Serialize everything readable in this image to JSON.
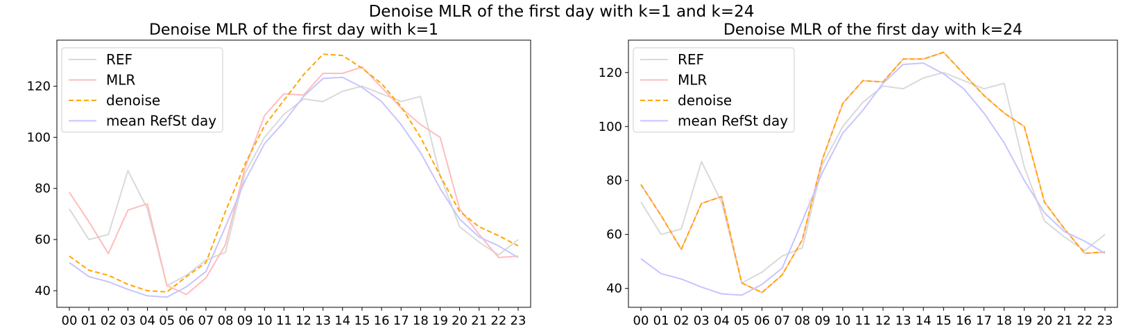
{
  "suptitle": "Denoise MLR of the first day with k=1 and k=24",
  "chart_data": [
    {
      "type": "line",
      "title": "Denoise MLR of the first day with k=1",
      "xlabel": "",
      "ylabel": "",
      "categories": [
        "00",
        "01",
        "02",
        "03",
        "04",
        "05",
        "06",
        "07",
        "08",
        "09",
        "10",
        "11",
        "12",
        "13",
        "14",
        "15",
        "16",
        "17",
        "18",
        "19",
        "20",
        "21",
        "22",
        "23"
      ],
      "ylim": [
        33.5,
        138
      ],
      "yticks": [
        40,
        60,
        80,
        100,
        120
      ],
      "grid": false,
      "legend": "top-left",
      "series": [
        {
          "name": "REF",
          "color": "#d9d9d9",
          "style": "solid",
          "values": [
            72,
            60,
            62,
            87,
            72,
            42,
            46,
            52,
            55,
            86,
            100,
            109,
            115,
            114,
            118,
            120,
            117,
            114,
            116,
            85,
            65,
            59,
            54,
            60
          ]
        },
        {
          "name": "MLR",
          "color": "#ffbcbc",
          "style": "solid",
          "values": [
            78.5,
            67,
            54.5,
            71.5,
            74,
            42,
            38.5,
            45,
            58,
            88,
            108.5,
            117,
            116.5,
            125,
            125,
            127.5,
            119.5,
            111.5,
            105,
            100,
            72,
            62,
            53,
            53.5
          ]
        },
        {
          "name": "denoise",
          "color": "#ffa500",
          "style": "dashed",
          "values": [
            53.5,
            48,
            46,
            42.5,
            40,
            39.5,
            45.5,
            51,
            71,
            89.5,
            104.5,
            114.5,
            124.5,
            132.5,
            132,
            127,
            121,
            112,
            100,
            85,
            71,
            65,
            61.5,
            57.5
          ]
        },
        {
          "name": "mean RefSt day",
          "color": "#c5c5ff",
          "style": "solid",
          "values": [
            51,
            45.5,
            43.5,
            40.5,
            38,
            37.5,
            41.5,
            47.5,
            65,
            83,
            97.5,
            106,
            116,
            123,
            123.5,
            119.5,
            114,
            105,
            94,
            80,
            68,
            61,
            57.5,
            53
          ]
        }
      ]
    },
    {
      "type": "line",
      "title": "Denoise MLR of the first day with k=24",
      "xlabel": "",
      "ylabel": "",
      "categories": [
        "00",
        "01",
        "02",
        "03",
        "04",
        "05",
        "06",
        "07",
        "08",
        "09",
        "10",
        "11",
        "12",
        "13",
        "14",
        "15",
        "16",
        "17",
        "18",
        "19",
        "20",
        "21",
        "22",
        "23"
      ],
      "ylim": [
        33,
        132
      ],
      "yticks": [
        40,
        60,
        80,
        100,
        120
      ],
      "grid": false,
      "legend": "top-left",
      "series": [
        {
          "name": "REF",
          "color": "#d9d9d9",
          "style": "solid",
          "values": [
            72,
            60,
            62,
            87,
            72,
            42,
            46,
            52,
            55,
            86,
            100,
            109,
            115,
            114,
            118,
            120,
            117,
            114,
            116,
            85,
            65,
            59,
            54,
            60
          ]
        },
        {
          "name": "MLR",
          "color": "#ffbcbc",
          "style": "solid",
          "values": [
            78.5,
            67,
            54.5,
            71.5,
            74,
            42,
            38.5,
            45,
            58,
            88,
            108.5,
            117,
            116.5,
            125,
            125,
            127.5,
            119.5,
            111.5,
            105,
            100,
            72,
            62,
            53,
            53.5
          ]
        },
        {
          "name": "denoise",
          "color": "#ffa500",
          "style": "dashed",
          "values": [
            78.5,
            67,
            54.5,
            71.5,
            74,
            42,
            38.5,
            45,
            58,
            88,
            108.5,
            117,
            116.5,
            125,
            125,
            127.5,
            119.5,
            111.5,
            105,
            100,
            72,
            62,
            53,
            53.5
          ]
        },
        {
          "name": "mean RefSt day",
          "color": "#c5c5ff",
          "style": "solid",
          "values": [
            51,
            45.5,
            43.5,
            40.5,
            38,
            37.5,
            41.5,
            47.5,
            65,
            83,
            97.5,
            106,
            116,
            123,
            123.5,
            119.5,
            114,
            105,
            94,
            80,
            68,
            61,
            57.5,
            53
          ]
        }
      ]
    }
  ]
}
